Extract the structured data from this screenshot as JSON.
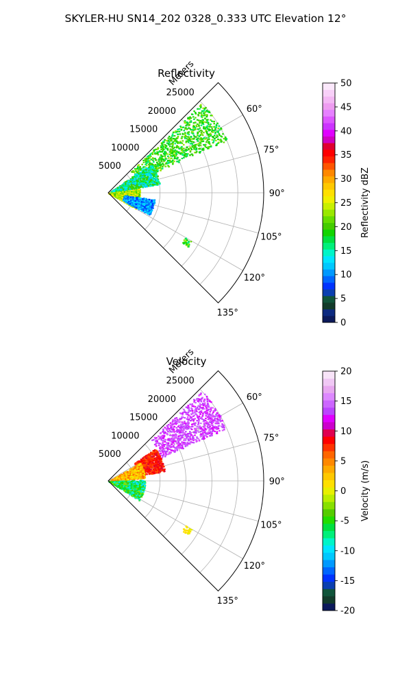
{
  "figure": {
    "suptitle": "SKYLER-HU  SN14_202  0328_0.333 UTC Elevation 12°"
  },
  "chart_data": [
    {
      "type": "heatmap",
      "projection": "polar-sector",
      "title": "Reflectivity",
      "range_label": "Meters",
      "range_ticks": [
        5000,
        10000,
        15000,
        20000,
        25000
      ],
      "range_max": 30000,
      "azimuth_span_deg": [
        45,
        135
      ],
      "angle_ticks": [
        "60°",
        "75°",
        "90°",
        "105°",
        "120°",
        "135°"
      ],
      "angle_tick_values": [
        60,
        75,
        90,
        105,
        120,
        135
      ],
      "grid": true,
      "colorbar": {
        "label": "Reflectivity dBZ",
        "min": 0,
        "max": 50,
        "ticks": [
          0,
          5,
          10,
          15,
          20,
          25,
          30,
          35,
          40,
          45,
          50
        ],
        "palette": [
          "#0c1a5b",
          "#0d2a80",
          "#123b2a",
          "#10543a",
          "#0a3fb0",
          "#0033ff",
          "#0066ff",
          "#0099ff",
          "#00c8ff",
          "#00e5ff",
          "#00f5c8",
          "#00f07a",
          "#00e040",
          "#11d400",
          "#44cc00",
          "#66dd00",
          "#99e800",
          "#c8f000",
          "#f0f000",
          "#ffe000",
          "#ffc800",
          "#ffaa00",
          "#ff8800",
          "#ff5500",
          "#ff2200",
          "#ff0000",
          "#e00030",
          "#d000c0",
          "#e000ff",
          "#cc33ff",
          "#dd55ff",
          "#e680ff",
          "#ee9cf0",
          "#f4b8f4",
          "#f8d0f8",
          "#fbe8fb"
        ]
      },
      "echo_regions": [
        {
          "range_m": [
            6000,
            25000
          ],
          "az_deg": [
            46,
            66
          ],
          "values_dbz": [
            14,
            24
          ],
          "dominant": "green"
        },
        {
          "range_m": [
            500,
            10000
          ],
          "az_deg": [
            55,
            80
          ],
          "values_dbz": [
            12,
            26
          ],
          "dominant": "cyan-green"
        },
        {
          "range_m": [
            0,
            6000
          ],
          "az_deg": [
            82,
            120
          ],
          "values_dbz": [
            18,
            28
          ],
          "dominant": "yellow-green"
        },
        {
          "range_m": [
            3000,
            9000
          ],
          "az_deg": [
            98,
            118
          ],
          "values_dbz": [
            3,
            12
          ],
          "dominant": "blue-cyan"
        },
        {
          "range_m": [
            17000,
            18500
          ],
          "az_deg": [
            120,
            124
          ],
          "values_dbz": [
            18,
            20
          ],
          "dominant": "green"
        }
      ]
    },
    {
      "type": "heatmap",
      "projection": "polar-sector",
      "title": "Velocity",
      "range_label": "Meters",
      "range_ticks": [
        5000,
        10000,
        15000,
        20000,
        25000
      ],
      "range_max": 30000,
      "azimuth_span_deg": [
        45,
        135
      ],
      "angle_ticks": [
        "60°",
        "75°",
        "90°",
        "105°",
        "120°",
        "135°"
      ],
      "angle_tick_values": [
        60,
        75,
        90,
        105,
        120,
        135
      ],
      "grid": true,
      "colorbar": {
        "label": "Velocity (m/s)",
        "min": -20,
        "max": 20,
        "ticks": [
          -20,
          -15,
          -10,
          -5,
          0,
          5,
          10,
          15,
          20
        ],
        "palette": [
          "#0c1a5b",
          "#123b2a",
          "#10543a",
          "#0a3fb0",
          "#0033ff",
          "#0066ff",
          "#0099ff",
          "#00c8ff",
          "#00e5ff",
          "#00f5c8",
          "#00f07a",
          "#00e040",
          "#22dd00",
          "#55cc00",
          "#88e000",
          "#bbee00",
          "#e8f000",
          "#ffe000",
          "#ffc800",
          "#ffaa00",
          "#ff8800",
          "#ff6600",
          "#ff3300",
          "#ff0000",
          "#e00050",
          "#cc00cc",
          "#e000ff",
          "#bb44ff",
          "#cc66ff",
          "#dd88ff",
          "#e8a8f0",
          "#f0c8f4",
          "#f8e4f8"
        ]
      },
      "echo_regions": [
        {
          "range_m": [
            11000,
            25000
          ],
          "az_deg": [
            46,
            66
          ],
          "values_ms": [
            12,
            16
          ],
          "dominant": "purple"
        },
        {
          "range_m": [
            6000,
            11000
          ],
          "az_deg": [
            55,
            80
          ],
          "values_ms": [
            7,
            11
          ],
          "dominant": "red"
        },
        {
          "range_m": [
            500,
            7000
          ],
          "az_deg": [
            60,
            85
          ],
          "values_ms": [
            2,
            6
          ],
          "dominant": "orange-yellow"
        },
        {
          "range_m": [
            0,
            7000
          ],
          "az_deg": [
            88,
            122
          ],
          "values_ms": [
            -10,
            -2
          ],
          "dominant": "green-cyan"
        },
        {
          "range_m": [
            17000,
            18500
          ],
          "az_deg": [
            120,
            124
          ],
          "values_ms": [
            0,
            2
          ],
          "dominant": "yellow"
        }
      ]
    }
  ]
}
